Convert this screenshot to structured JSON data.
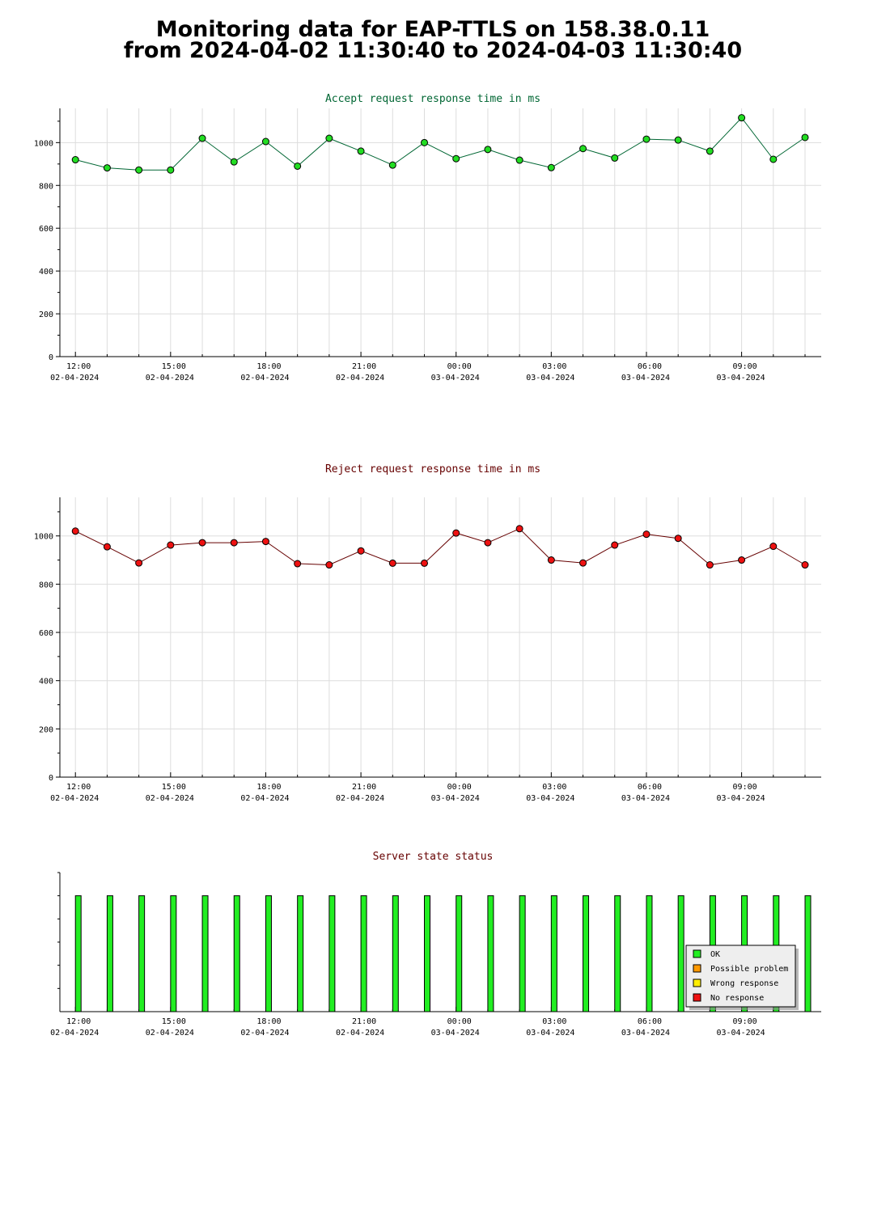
{
  "page": {
    "title_line1": "Monitoring data for EAP-TTLS on 158.38.0.11",
    "title_line2": "from 2024-04-02 11:30:40 to 2024-04-03 11:30:40"
  },
  "colors": {
    "accept_line": "#006633",
    "accept_marker": "#22dd22",
    "reject_line": "#660000",
    "reject_marker": "#ee1111",
    "status_ok": "#22ee22",
    "status_possible_problem": "#ff9900",
    "status_wrong_response": "#ffee00",
    "status_no_response": "#ee1111",
    "grid": "#dddddd"
  },
  "chart_data": [
    {
      "type": "line",
      "title": "Accept request response time in ms",
      "ylim": [
        0,
        1160
      ],
      "yticks": [
        "0",
        "200",
        "400",
        "600",
        "800",
        "1000"
      ],
      "xticks": [
        {
          "time": "12:00",
          "date": "02-04-2024"
        },
        {
          "time": "15:00",
          "date": "02-04-2024"
        },
        {
          "time": "18:00",
          "date": "02-04-2024"
        },
        {
          "time": "21:00",
          "date": "02-04-2024"
        },
        {
          "time": "00:00",
          "date": "03-04-2024"
        },
        {
          "time": "03:00",
          "date": "03-04-2024"
        },
        {
          "time": "06:00",
          "date": "03-04-2024"
        },
        {
          "time": "09:00",
          "date": "03-04-2024"
        }
      ],
      "x": [
        "2024-04-02 12:00",
        "2024-04-02 13:00",
        "2024-04-02 14:00",
        "2024-04-02 15:00",
        "2024-04-02 16:00",
        "2024-04-02 17:00",
        "2024-04-02 18:00",
        "2024-04-02 19:00",
        "2024-04-02 20:00",
        "2024-04-02 21:00",
        "2024-04-02 22:00",
        "2024-04-02 23:00",
        "2024-04-03 00:00",
        "2024-04-03 01:00",
        "2024-04-03 02:00",
        "2024-04-03 03:00",
        "2024-04-03 04:00",
        "2024-04-03 05:00",
        "2024-04-03 06:00",
        "2024-04-03 07:00",
        "2024-04-03 08:00",
        "2024-04-03 09:00",
        "2024-04-03 10:00",
        "2024-04-03 11:00"
      ],
      "values": [
        920,
        882,
        872,
        872,
        1020,
        910,
        1005,
        890,
        1020,
        960,
        895,
        1000,
        925,
        968,
        918,
        883,
        972,
        928,
        1016,
        1012,
        960,
        1116,
        922,
        1024
      ],
      "grid": true
    },
    {
      "type": "line",
      "title": "Reject request response time in ms",
      "ylim": [
        0,
        1160
      ],
      "yticks": [
        "0",
        "200",
        "400",
        "600",
        "800",
        "1000"
      ],
      "xticks": [
        {
          "time": "12:00",
          "date": "02-04-2024"
        },
        {
          "time": "15:00",
          "date": "02-04-2024"
        },
        {
          "time": "18:00",
          "date": "02-04-2024"
        },
        {
          "time": "21:00",
          "date": "02-04-2024"
        },
        {
          "time": "00:00",
          "date": "03-04-2024"
        },
        {
          "time": "03:00",
          "date": "03-04-2024"
        },
        {
          "time": "06:00",
          "date": "03-04-2024"
        },
        {
          "time": "09:00",
          "date": "03-04-2024"
        }
      ],
      "x": [
        "2024-04-02 12:00",
        "2024-04-02 13:00",
        "2024-04-02 14:00",
        "2024-04-02 15:00",
        "2024-04-02 16:00",
        "2024-04-02 17:00",
        "2024-04-02 18:00",
        "2024-04-02 19:00",
        "2024-04-02 20:00",
        "2024-04-02 21:00",
        "2024-04-02 22:00",
        "2024-04-02 23:00",
        "2024-04-03 00:00",
        "2024-04-03 01:00",
        "2024-04-03 02:00",
        "2024-04-03 03:00",
        "2024-04-03 04:00",
        "2024-04-03 05:00",
        "2024-04-03 06:00",
        "2024-04-03 07:00",
        "2024-04-03 08:00",
        "2024-04-03 09:00",
        "2024-04-03 10:00",
        "2024-04-03 11:00"
      ],
      "values": [
        1020,
        955,
        888,
        962,
        972,
        972,
        977,
        885,
        880,
        938,
        887,
        887,
        1012,
        972,
        1030,
        900,
        888,
        962,
        1007,
        990,
        880,
        900,
        957,
        880
      ],
      "grid": true
    },
    {
      "type": "bar",
      "title": "Server state status",
      "ylim": [
        0,
        1.2
      ],
      "xticks": [
        {
          "time": "12:00",
          "date": "02-04-2024"
        },
        {
          "time": "15:00",
          "date": "02-04-2024"
        },
        {
          "time": "18:00",
          "date": "02-04-2024"
        },
        {
          "time": "21:00",
          "date": "02-04-2024"
        },
        {
          "time": "00:00",
          "date": "03-04-2024"
        },
        {
          "time": "03:00",
          "date": "03-04-2024"
        },
        {
          "time": "06:00",
          "date": "03-04-2024"
        },
        {
          "time": "09:00",
          "date": "03-04-2024"
        }
      ],
      "x": [
        "2024-04-02 12:00",
        "2024-04-02 13:00",
        "2024-04-02 14:00",
        "2024-04-02 15:00",
        "2024-04-02 16:00",
        "2024-04-02 17:00",
        "2024-04-02 18:00",
        "2024-04-02 19:00",
        "2024-04-02 20:00",
        "2024-04-02 21:00",
        "2024-04-02 22:00",
        "2024-04-02 23:00",
        "2024-04-03 00:00",
        "2024-04-03 01:00",
        "2024-04-03 02:00",
        "2024-04-03 03:00",
        "2024-04-03 04:00",
        "2024-04-03 05:00",
        "2024-04-03 06:00",
        "2024-04-03 07:00",
        "2024-04-03 08:00",
        "2024-04-03 09:00",
        "2024-04-03 10:00",
        "2024-04-03 11:00"
      ],
      "status": [
        "OK",
        "OK",
        "OK",
        "OK",
        "OK",
        "OK",
        "OK",
        "OK",
        "OK",
        "OK",
        "OK",
        "OK",
        "OK",
        "OK",
        "OK",
        "OK",
        "OK",
        "OK",
        "OK",
        "OK",
        "OK",
        "OK",
        "OK",
        "OK"
      ],
      "legend": {
        "placement": "bottom-right",
        "entries": [
          "OK",
          "Possible problem",
          "Wrong response",
          "No response"
        ]
      }
    }
  ]
}
